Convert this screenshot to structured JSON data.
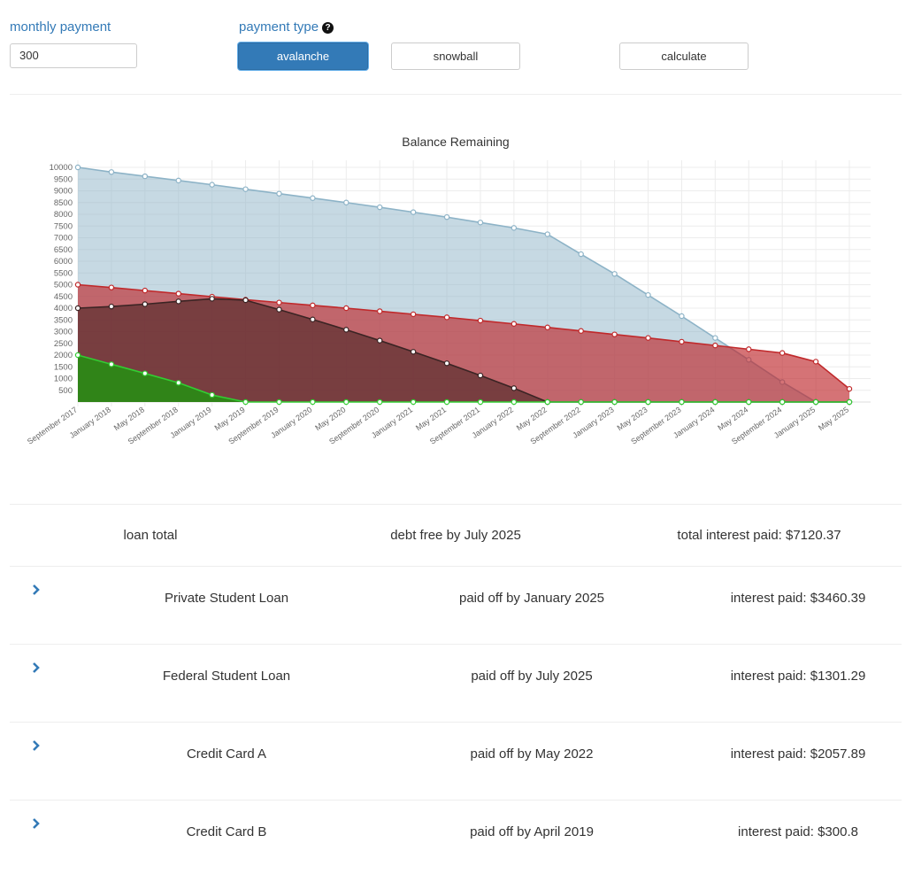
{
  "controls": {
    "monthly_payment_label": "monthly payment",
    "monthly_payment_value": "300",
    "payment_type_label": "payment type",
    "help_icon": "question-circle-icon",
    "avalanche_label": "avalanche",
    "snowball_label": "snowball",
    "calculate_label": "calculate",
    "active_type": "avalanche"
  },
  "chart_data": {
    "type": "area",
    "title": "Balance Remaining",
    "ylim": [
      0,
      10000
    ],
    "y_ticks": [
      500,
      1000,
      1500,
      2000,
      2500,
      3000,
      3500,
      4000,
      4500,
      5000,
      5500,
      6000,
      6500,
      7000,
      7500,
      8000,
      8500,
      9000,
      9500,
      10000
    ],
    "x": [
      "September 2017",
      "January 2018",
      "May 2018",
      "September 2018",
      "January 2019",
      "May 2019",
      "September 2019",
      "January 2020",
      "May 2020",
      "September 2020",
      "January 2021",
      "May 2021",
      "September 2021",
      "January 2022",
      "May 2022",
      "September 2022",
      "January 2023",
      "May 2023",
      "September 2023",
      "January 2024",
      "May 2024",
      "September 2024",
      "January 2025",
      "May 2025"
    ],
    "grid": true,
    "series": [
      {
        "name": "Private Student Loan",
        "color": "#8db3c7",
        "values": [
          10000,
          9800,
          9620,
          9440,
          9260,
          9070,
          8880,
          8690,
          8500,
          8300,
          8090,
          7880,
          7650,
          7420,
          7150,
          6300,
          5460,
          4560,
          3660,
          2730,
          1800,
          850,
          0,
          0
        ]
      },
      {
        "name": "Federal Student Loan",
        "color": "#c0292b",
        "values": [
          5000,
          4880,
          4750,
          4620,
          4490,
          4360,
          4240,
          4120,
          4000,
          3870,
          3740,
          3610,
          3470,
          3330,
          3180,
          3030,
          2880,
          2730,
          2570,
          2410,
          2250,
          2090,
          1720,
          560
        ]
      },
      {
        "name": "Credit Card A",
        "color": "#3b2424",
        "values": [
          4000,
          4070,
          4170,
          4290,
          4400,
          4340,
          3940,
          3520,
          3080,
          2620,
          2140,
          1650,
          1130,
          590,
          0,
          0,
          0,
          0,
          0,
          0,
          0,
          0,
          0,
          0
        ]
      },
      {
        "name": "Credit Card B",
        "color": "#32cd32",
        "values": [
          2000,
          1610,
          1220,
          820,
          300,
          0,
          0,
          0,
          0,
          0,
          0,
          0,
          0,
          0,
          0,
          0,
          0,
          0,
          0,
          0,
          0,
          0,
          0,
          0
        ]
      }
    ]
  },
  "summary": {
    "label": "loan total",
    "debt_free": "debt free by July 2025",
    "total_interest": "total interest paid: $7120.37"
  },
  "loans": [
    {
      "name": "Private Student Loan",
      "paid_off": "paid off by January 2025",
      "interest": "interest paid: $3460.39"
    },
    {
      "name": "Federal Student Loan",
      "paid_off": "paid off by July 2025",
      "interest": "interest paid: $1301.29"
    },
    {
      "name": "Credit Card A",
      "paid_off": "paid off by May 2022",
      "interest": "interest paid: $2057.89"
    },
    {
      "name": "Credit Card B",
      "paid_off": "paid off by April 2019",
      "interest": "interest paid: $300.8"
    }
  ]
}
